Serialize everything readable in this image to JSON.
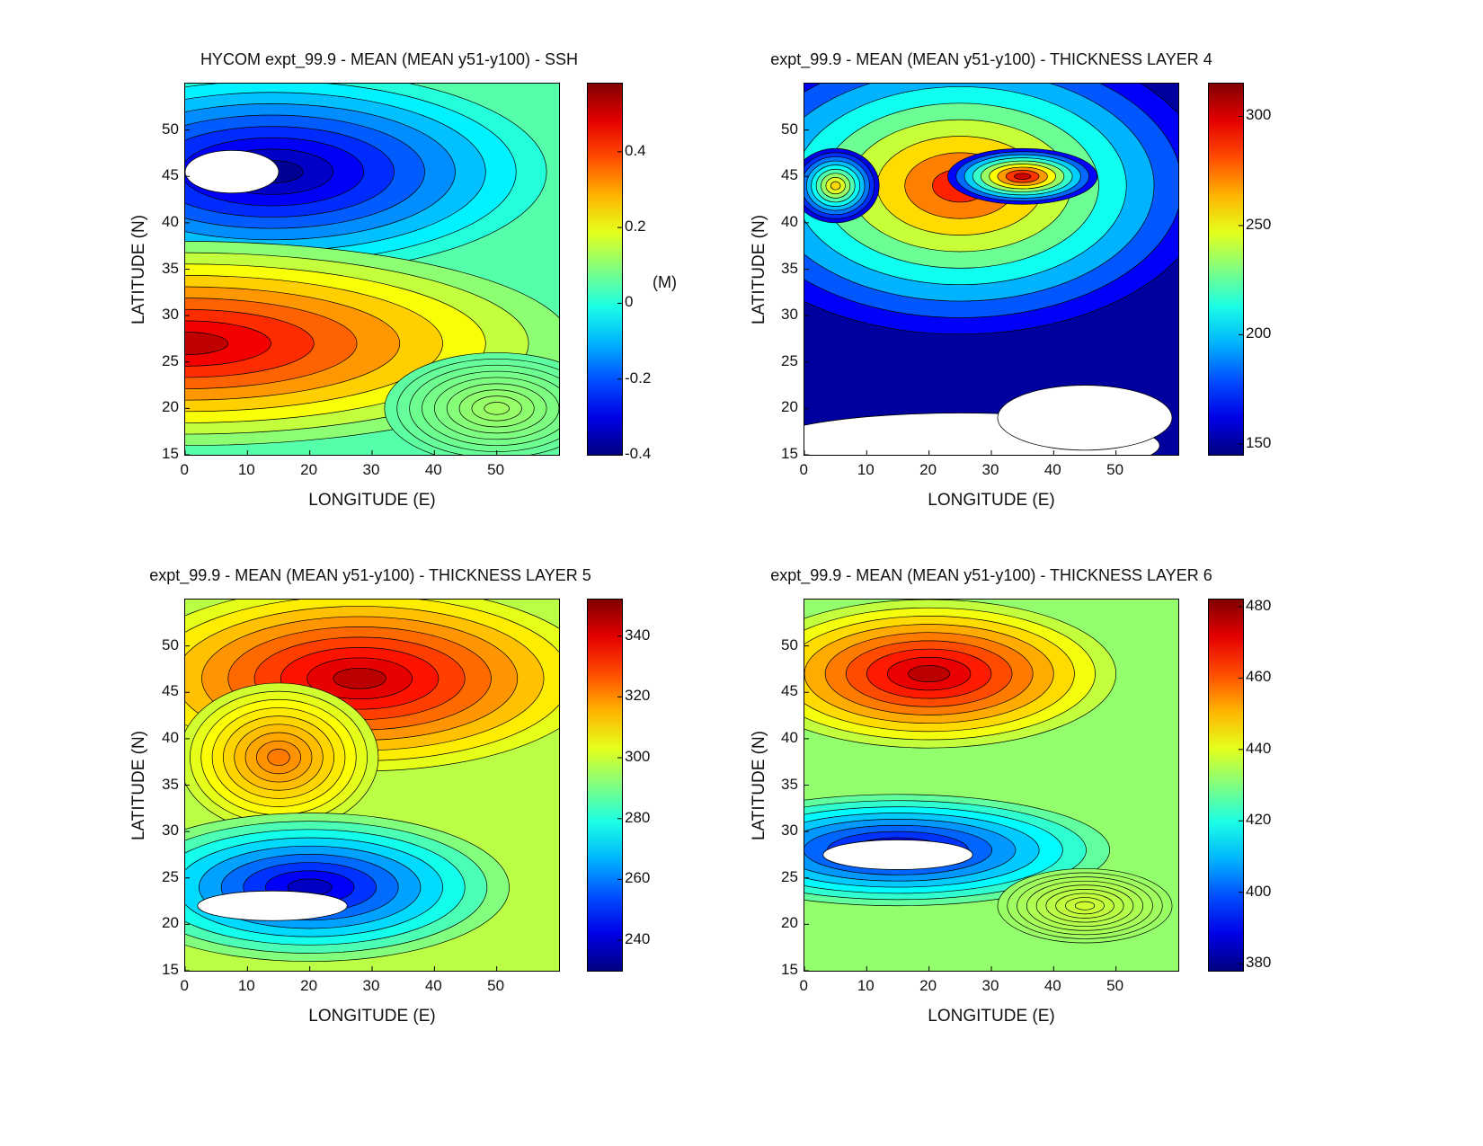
{
  "chart_data": [
    {
      "type": "contour",
      "title": "HYCOM expt_99.9 - MEAN (MEAN y51-y100) - SSH",
      "xlabel": "LONGITUDE (E)",
      "ylabel": "LATITUDE (N)",
      "xlim": [
        0,
        60
      ],
      "ylim": [
        15,
        55
      ],
      "xticks": [
        "0",
        "10",
        "20",
        "30",
        "40",
        "50"
      ],
      "yticks": [
        "15",
        "20",
        "25",
        "30",
        "35",
        "40",
        "45",
        "50"
      ],
      "colorbar": {
        "min": -0.4,
        "max": 0.58,
        "ticks": [
          "-0.4",
          "-0.2",
          "0",
          "0.2",
          "0.4"
        ],
        "tick_values": [
          -0.4,
          -0.2,
          0,
          0.2,
          0.4
        ],
        "unit": "(M)"
      },
      "background_value": 0.05,
      "features": [
        {
          "kind": "blob",
          "lon": 14,
          "lat": 45.5,
          "rx": 44,
          "ry": 11,
          "value": -0.38
        },
        {
          "kind": "blob",
          "lon": 0,
          "lat": 27,
          "rx": 62,
          "ry": 11,
          "value": 0.52
        },
        {
          "kind": "blob",
          "lon": 50,
          "lat": 20,
          "rx": 18,
          "ry": 6,
          "value": 0.12
        },
        {
          "kind": "hole",
          "lon": 7.5,
          "lat": 45.5,
          "rx": 7.5,
          "ry": 2.3
        }
      ]
    },
    {
      "type": "contour",
      "title": "expt_99.9 - MEAN (MEAN y51-y100) - THICKNESS LAYER 4",
      "xlabel": "LONGITUDE (E)",
      "ylabel": "LATITUDE (N)",
      "xlim": [
        0,
        60
      ],
      "ylim": [
        15,
        55
      ],
      "xticks": [
        "0",
        "10",
        "20",
        "30",
        "40",
        "50"
      ],
      "yticks": [
        "15",
        "20",
        "25",
        "30",
        "35",
        "40",
        "45",
        "50"
      ],
      "colorbar": {
        "min": 145,
        "max": 315,
        "ticks": [
          "150",
          "200",
          "250",
          "300"
        ],
        "tick_values": [
          150,
          200,
          250,
          300
        ],
        "unit": ""
      },
      "background_value": 150,
      "features": [
        {
          "kind": "blob",
          "lon": 25,
          "lat": 44,
          "rx": 40,
          "ry": 16,
          "value": 288
        },
        {
          "kind": "blob",
          "lon": 35,
          "lat": 45,
          "rx": 12,
          "ry": 3,
          "value": 302
        },
        {
          "kind": "blob",
          "lon": 5,
          "lat": 44,
          "rx": 7,
          "ry": 4,
          "value": 258
        },
        {
          "kind": "hole",
          "lon": 25,
          "lat": 16,
          "rx": 32,
          "ry": 3.5
        },
        {
          "kind": "hole",
          "lon": 45,
          "lat": 19,
          "rx": 14,
          "ry": 3.5
        }
      ]
    },
    {
      "type": "contour",
      "title": "expt_99.9 - MEAN (MEAN y51-y100) - THICKNESS LAYER 5",
      "xlabel": "LONGITUDE (E)",
      "ylabel": "LATITUDE (N)",
      "xlim": [
        0,
        60
      ],
      "ylim": [
        15,
        55
      ],
      "xticks": [
        "0",
        "10",
        "20",
        "30",
        "40",
        "50"
      ],
      "yticks": [
        "15",
        "20",
        "25",
        "30",
        "35",
        "40",
        "45",
        "50"
      ],
      "colorbar": {
        "min": 230,
        "max": 352,
        "ticks": [
          "240",
          "260",
          "280",
          "300",
          "320",
          "340"
        ],
        "tick_values": [
          240,
          260,
          280,
          300,
          320,
          340
        ],
        "unit": ""
      },
      "background_value": 298,
      "features": [
        {
          "kind": "blob",
          "lon": 28,
          "lat": 46.5,
          "rx": 38,
          "ry": 10,
          "value": 345
        },
        {
          "kind": "blob",
          "lon": 15,
          "lat": 38,
          "rx": 16,
          "ry": 8,
          "value": 322
        },
        {
          "kind": "blob",
          "lon": 20,
          "lat": 24,
          "rx": 32,
          "ry": 8,
          "value": 238
        },
        {
          "kind": "hole",
          "lon": 14,
          "lat": 22,
          "rx": 12,
          "ry": 1.6
        }
      ]
    },
    {
      "type": "contour",
      "title": "expt_99.9 - MEAN (MEAN y51-y100) - THICKNESS LAYER 6",
      "xlabel": "LONGITUDE (E)",
      "ylabel": "LATITUDE (N)",
      "xlim": [
        0,
        60
      ],
      "ylim": [
        15,
        55
      ],
      "xticks": [
        "0",
        "10",
        "20",
        "30",
        "40",
        "50"
      ],
      "yticks": [
        "15",
        "20",
        "25",
        "30",
        "35",
        "40",
        "45",
        "50"
      ],
      "colorbar": {
        "min": 378,
        "max": 482,
        "ticks": [
          "380",
          "400",
          "420",
          "440",
          "460",
          "480"
        ],
        "tick_values": [
          380,
          400,
          420,
          440,
          460,
          480
        ],
        "unit": ""
      },
      "background_value": 432,
      "features": [
        {
          "kind": "blob",
          "lon": 20,
          "lat": 47,
          "rx": 30,
          "ry": 8,
          "value": 476
        },
        {
          "kind": "blob",
          "lon": 15,
          "lat": 28,
          "rx": 34,
          "ry": 6,
          "value": 386
        },
        {
          "kind": "blob",
          "lon": 45,
          "lat": 22,
          "rx": 14,
          "ry": 4,
          "value": 438
        },
        {
          "kind": "hole",
          "lon": 15,
          "lat": 27.5,
          "rx": 12,
          "ry": 1.6
        }
      ]
    }
  ]
}
